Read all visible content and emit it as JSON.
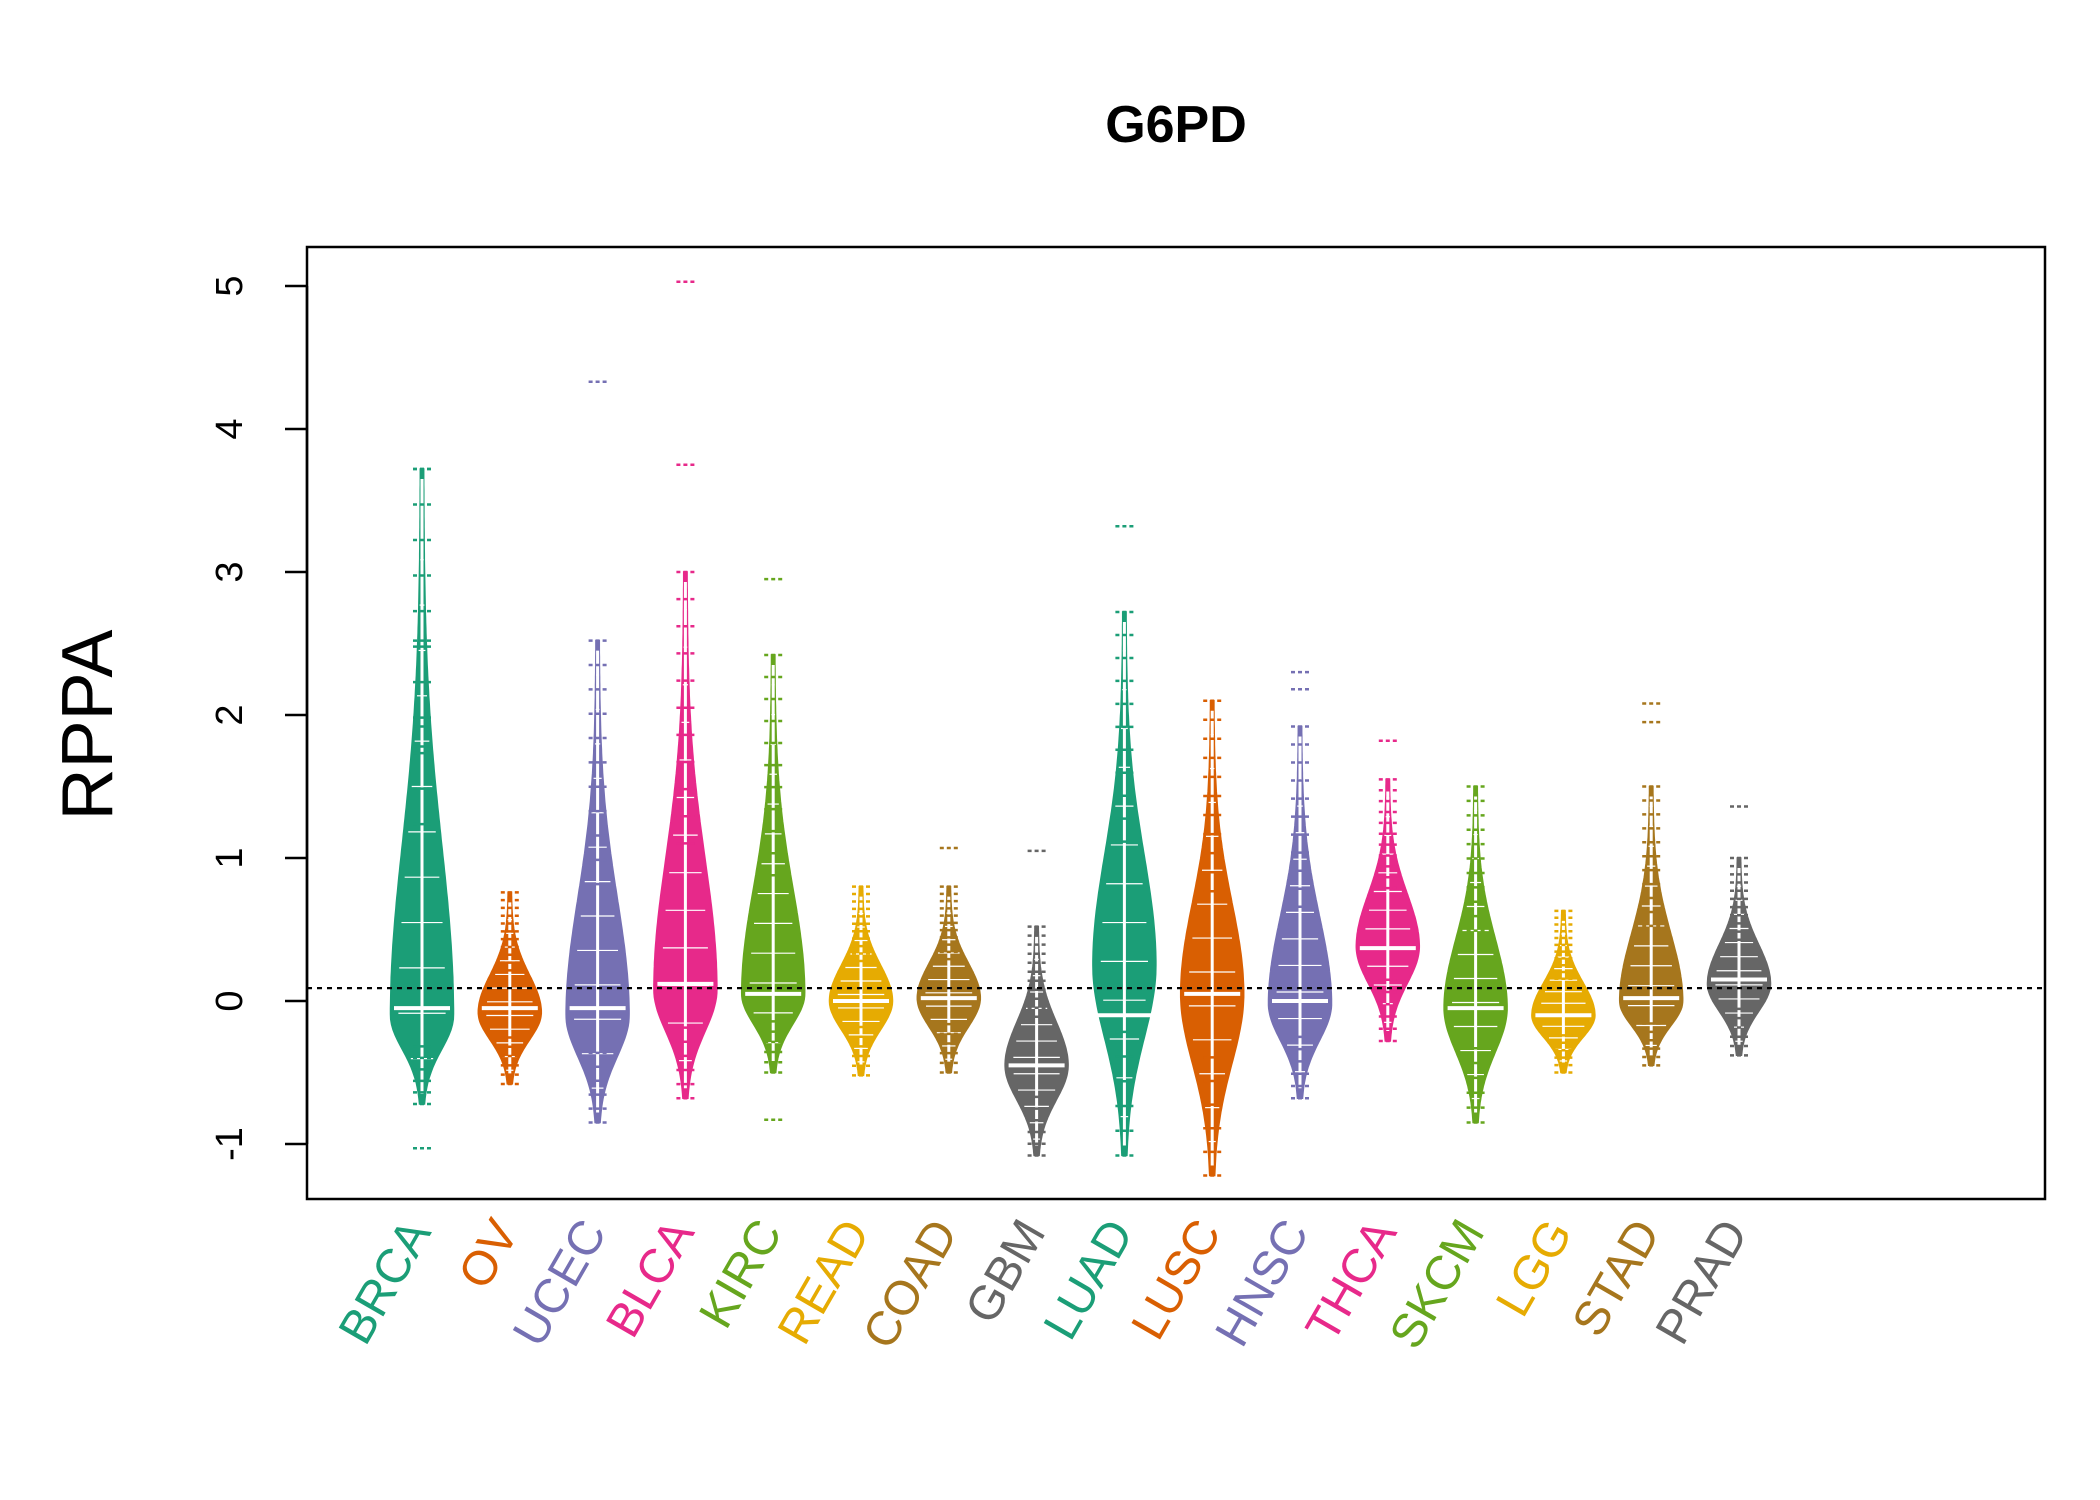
{
  "chart_data": {
    "type": "violin",
    "title": "G6PD",
    "xlabel": "",
    "ylabel": "RPPA",
    "ylim": [
      -1.35,
      5.3
    ],
    "yticks": [
      -1,
      0,
      1,
      2,
      3,
      4,
      5
    ],
    "reference_line": 0.09,
    "categories": [
      "BRCA",
      "OV",
      "UCEC",
      "BLCA",
      "KIRC",
      "READ",
      "COAD",
      "GBM",
      "LUAD",
      "LUSC",
      "HNSC",
      "THCA",
      "SKCM",
      "LGG",
      "STAD",
      "PRAD"
    ],
    "colors": [
      "#1B9E77",
      "#D95F02",
      "#7570B3",
      "#E7298A",
      "#66A61E",
      "#E6AB02",
      "#A6761D",
      "#666666",
      "#1B9E77",
      "#D95F02",
      "#7570B3",
      "#E7298A",
      "#66A61E",
      "#E6AB02",
      "#A6761D",
      "#666666"
    ],
    "series": [
      {
        "name": "BRCA",
        "min": -0.72,
        "max": 3.72,
        "median": -0.05,
        "mode": -0.1,
        "outliers": [
          -1.03,
          1.78,
          1.92,
          2.52,
          3.72
        ]
      },
      {
        "name": "OV",
        "min": -0.58,
        "max": 0.76,
        "median": -0.05,
        "mode": -0.08,
        "outliers": []
      },
      {
        "name": "UCEC",
        "min": -0.85,
        "max": 2.52,
        "median": -0.05,
        "mode": -0.1,
        "outliers": [
          4.33
        ]
      },
      {
        "name": "BLCA",
        "min": -0.68,
        "max": 3.0,
        "median": 0.12,
        "mode": 0.08,
        "outliers": [
          3.75,
          5.03
        ]
      },
      {
        "name": "KIRC",
        "min": -0.5,
        "max": 2.42,
        "median": 0.05,
        "mode": 0.05,
        "outliers": [
          -0.83,
          2.95
        ]
      },
      {
        "name": "READ",
        "min": -0.52,
        "max": 0.8,
        "median": 0.0,
        "mode": 0.0,
        "outliers": []
      },
      {
        "name": "COAD",
        "min": -0.5,
        "max": 0.8,
        "median": 0.02,
        "mode": 0.02,
        "outliers": [
          1.07
        ]
      },
      {
        "name": "GBM",
        "min": -1.08,
        "max": 0.52,
        "median": -0.45,
        "mode": -0.45,
        "outliers": [
          1.05
        ]
      },
      {
        "name": "LUAD",
        "min": -1.08,
        "max": 2.72,
        "median": -0.1,
        "mode": 0.25,
        "outliers": [
          3.32
        ]
      },
      {
        "name": "LUSC",
        "min": -1.22,
        "max": 2.1,
        "median": 0.05,
        "mode": 0.05,
        "outliers": []
      },
      {
        "name": "HNSC",
        "min": -0.68,
        "max": 1.92,
        "median": 0.0,
        "mode": -0.02,
        "outliers": [
          2.18,
          2.3
        ]
      },
      {
        "name": "THCA",
        "min": -0.28,
        "max": 1.55,
        "median": 0.37,
        "mode": 0.38,
        "outliers": [
          1.82
        ]
      },
      {
        "name": "SKCM",
        "min": -0.85,
        "max": 1.5,
        "median": -0.05,
        "mode": -0.05,
        "outliers": []
      },
      {
        "name": "LGG",
        "min": -0.5,
        "max": 0.63,
        "median": -0.1,
        "mode": -0.1,
        "outliers": []
      },
      {
        "name": "STAD",
        "min": -0.45,
        "max": 1.5,
        "median": 0.02,
        "mode": 0.0,
        "outliers": [
          1.95,
          2.08
        ]
      },
      {
        "name": "PRAD",
        "min": -0.38,
        "max": 1.0,
        "median": 0.15,
        "mode": 0.12,
        "outliers": [
          1.36
        ]
      }
    ]
  }
}
